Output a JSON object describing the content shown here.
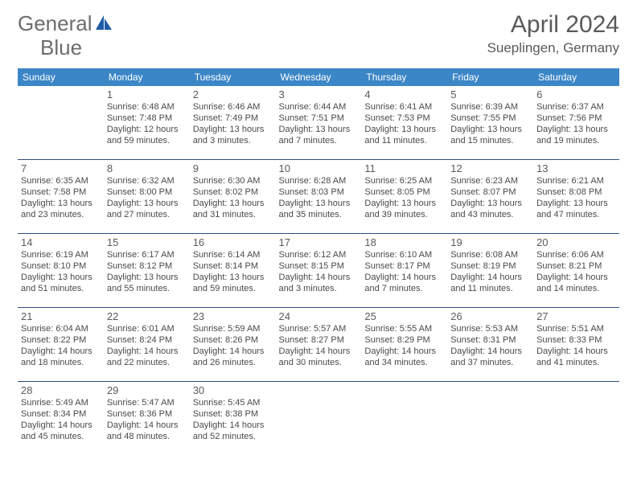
{
  "brand": {
    "part1": "General",
    "part2": "Blue"
  },
  "title": "April 2024",
  "location": "Sueplingen, Germany",
  "weekdays": [
    "Sunday",
    "Monday",
    "Tuesday",
    "Wednesday",
    "Thursday",
    "Friday",
    "Saturday"
  ],
  "colors": {
    "header_bg": "#3b86c6",
    "header_fg": "#ffffff",
    "rule": "#2b4c80",
    "brand_gray": "#6d6d6d",
    "brand_blue": "#1e5aa8",
    "text": "#4a4a4a"
  },
  "fonts": {
    "title_size": 30,
    "subtitle_size": 17,
    "weekday_size": 12,
    "daynum_size": 13,
    "cell_size": 11
  },
  "grid": [
    [
      {},
      {
        "num": "1",
        "sr": "Sunrise: 6:48 AM",
        "ss": "Sunset: 7:48 PM",
        "d1": "Daylight: 12 hours",
        "d2": "and 59 minutes."
      },
      {
        "num": "2",
        "sr": "Sunrise: 6:46 AM",
        "ss": "Sunset: 7:49 PM",
        "d1": "Daylight: 13 hours",
        "d2": "and 3 minutes."
      },
      {
        "num": "3",
        "sr": "Sunrise: 6:44 AM",
        "ss": "Sunset: 7:51 PM",
        "d1": "Daylight: 13 hours",
        "d2": "and 7 minutes."
      },
      {
        "num": "4",
        "sr": "Sunrise: 6:41 AM",
        "ss": "Sunset: 7:53 PM",
        "d1": "Daylight: 13 hours",
        "d2": "and 11 minutes."
      },
      {
        "num": "5",
        "sr": "Sunrise: 6:39 AM",
        "ss": "Sunset: 7:55 PM",
        "d1": "Daylight: 13 hours",
        "d2": "and 15 minutes."
      },
      {
        "num": "6",
        "sr": "Sunrise: 6:37 AM",
        "ss": "Sunset: 7:56 PM",
        "d1": "Daylight: 13 hours",
        "d2": "and 19 minutes."
      }
    ],
    [
      {
        "num": "7",
        "sr": "Sunrise: 6:35 AM",
        "ss": "Sunset: 7:58 PM",
        "d1": "Daylight: 13 hours",
        "d2": "and 23 minutes."
      },
      {
        "num": "8",
        "sr": "Sunrise: 6:32 AM",
        "ss": "Sunset: 8:00 PM",
        "d1": "Daylight: 13 hours",
        "d2": "and 27 minutes."
      },
      {
        "num": "9",
        "sr": "Sunrise: 6:30 AM",
        "ss": "Sunset: 8:02 PM",
        "d1": "Daylight: 13 hours",
        "d2": "and 31 minutes."
      },
      {
        "num": "10",
        "sr": "Sunrise: 6:28 AM",
        "ss": "Sunset: 8:03 PM",
        "d1": "Daylight: 13 hours",
        "d2": "and 35 minutes."
      },
      {
        "num": "11",
        "sr": "Sunrise: 6:25 AM",
        "ss": "Sunset: 8:05 PM",
        "d1": "Daylight: 13 hours",
        "d2": "and 39 minutes."
      },
      {
        "num": "12",
        "sr": "Sunrise: 6:23 AM",
        "ss": "Sunset: 8:07 PM",
        "d1": "Daylight: 13 hours",
        "d2": "and 43 minutes."
      },
      {
        "num": "13",
        "sr": "Sunrise: 6:21 AM",
        "ss": "Sunset: 8:08 PM",
        "d1": "Daylight: 13 hours",
        "d2": "and 47 minutes."
      }
    ],
    [
      {
        "num": "14",
        "sr": "Sunrise: 6:19 AM",
        "ss": "Sunset: 8:10 PM",
        "d1": "Daylight: 13 hours",
        "d2": "and 51 minutes."
      },
      {
        "num": "15",
        "sr": "Sunrise: 6:17 AM",
        "ss": "Sunset: 8:12 PM",
        "d1": "Daylight: 13 hours",
        "d2": "and 55 minutes."
      },
      {
        "num": "16",
        "sr": "Sunrise: 6:14 AM",
        "ss": "Sunset: 8:14 PM",
        "d1": "Daylight: 13 hours",
        "d2": "and 59 minutes."
      },
      {
        "num": "17",
        "sr": "Sunrise: 6:12 AM",
        "ss": "Sunset: 8:15 PM",
        "d1": "Daylight: 14 hours",
        "d2": "and 3 minutes."
      },
      {
        "num": "18",
        "sr": "Sunrise: 6:10 AM",
        "ss": "Sunset: 8:17 PM",
        "d1": "Daylight: 14 hours",
        "d2": "and 7 minutes."
      },
      {
        "num": "19",
        "sr": "Sunrise: 6:08 AM",
        "ss": "Sunset: 8:19 PM",
        "d1": "Daylight: 14 hours",
        "d2": "and 11 minutes."
      },
      {
        "num": "20",
        "sr": "Sunrise: 6:06 AM",
        "ss": "Sunset: 8:21 PM",
        "d1": "Daylight: 14 hours",
        "d2": "and 14 minutes."
      }
    ],
    [
      {
        "num": "21",
        "sr": "Sunrise: 6:04 AM",
        "ss": "Sunset: 8:22 PM",
        "d1": "Daylight: 14 hours",
        "d2": "and 18 minutes."
      },
      {
        "num": "22",
        "sr": "Sunrise: 6:01 AM",
        "ss": "Sunset: 8:24 PM",
        "d1": "Daylight: 14 hours",
        "d2": "and 22 minutes."
      },
      {
        "num": "23",
        "sr": "Sunrise: 5:59 AM",
        "ss": "Sunset: 8:26 PM",
        "d1": "Daylight: 14 hours",
        "d2": "and 26 minutes."
      },
      {
        "num": "24",
        "sr": "Sunrise: 5:57 AM",
        "ss": "Sunset: 8:27 PM",
        "d1": "Daylight: 14 hours",
        "d2": "and 30 minutes."
      },
      {
        "num": "25",
        "sr": "Sunrise: 5:55 AM",
        "ss": "Sunset: 8:29 PM",
        "d1": "Daylight: 14 hours",
        "d2": "and 34 minutes."
      },
      {
        "num": "26",
        "sr": "Sunrise: 5:53 AM",
        "ss": "Sunset: 8:31 PM",
        "d1": "Daylight: 14 hours",
        "d2": "and 37 minutes."
      },
      {
        "num": "27",
        "sr": "Sunrise: 5:51 AM",
        "ss": "Sunset: 8:33 PM",
        "d1": "Daylight: 14 hours",
        "d2": "and 41 minutes."
      }
    ],
    [
      {
        "num": "28",
        "sr": "Sunrise: 5:49 AM",
        "ss": "Sunset: 8:34 PM",
        "d1": "Daylight: 14 hours",
        "d2": "and 45 minutes."
      },
      {
        "num": "29",
        "sr": "Sunrise: 5:47 AM",
        "ss": "Sunset: 8:36 PM",
        "d1": "Daylight: 14 hours",
        "d2": "and 48 minutes."
      },
      {
        "num": "30",
        "sr": "Sunrise: 5:45 AM",
        "ss": "Sunset: 8:38 PM",
        "d1": "Daylight: 14 hours",
        "d2": "and 52 minutes."
      },
      {},
      {},
      {},
      {}
    ]
  ]
}
